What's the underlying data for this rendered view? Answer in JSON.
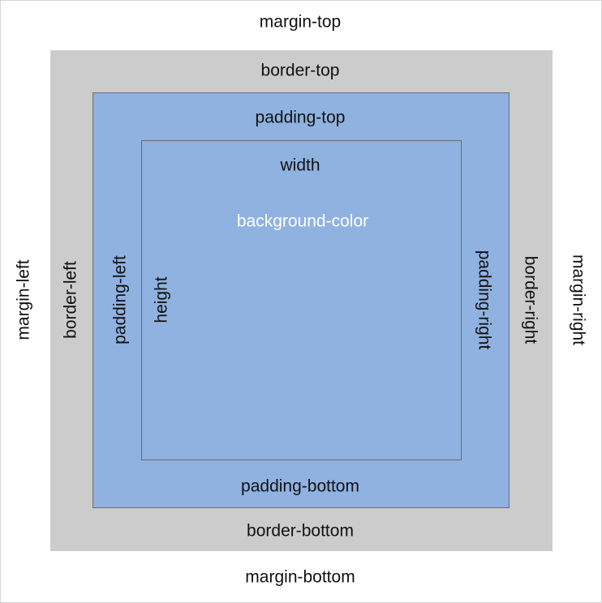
{
  "labels": {
    "margin_top": "margin-top",
    "margin_bottom": "margin-bottom",
    "margin_left": "margin-left",
    "margin_right": "margin-right",
    "border_top": "border-top",
    "border_bottom": "border-bottom",
    "border_left": "border-left",
    "border_right": "border-right",
    "padding_top": "padding-top",
    "padding_bottom": "padding-bottom",
    "padding_left": "padding-left",
    "padding_right": "padding-right",
    "width": "width",
    "height": "height",
    "background_color": "background-color"
  },
  "colors": {
    "margin": "#ffffff",
    "border": "#cccccc",
    "padding": "#8fb2e0",
    "content": "#8fb2e0",
    "outline": "#6c6c6c",
    "background_color_label": "#ffffff"
  }
}
